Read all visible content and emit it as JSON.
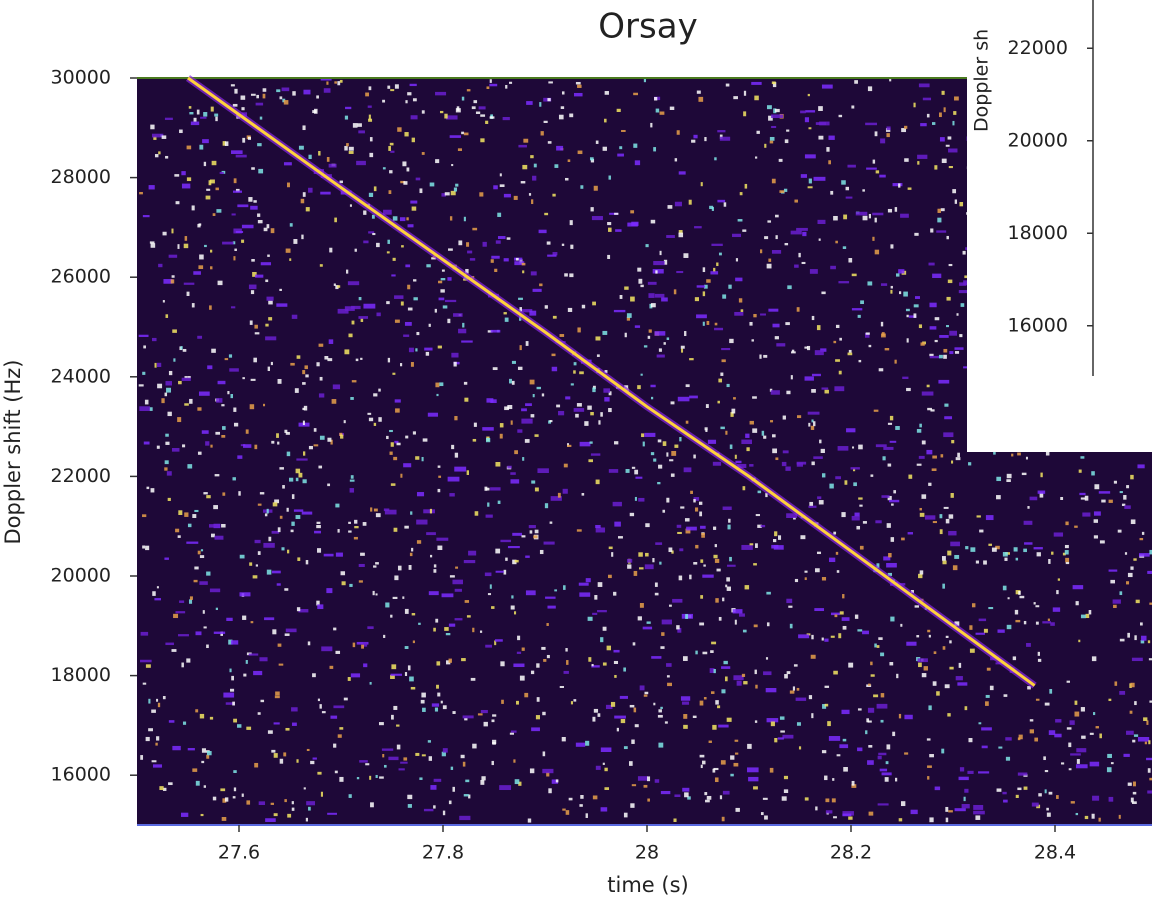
{
  "chart_data": [
    {
      "type": "line",
      "title": "Orsay",
      "xlabel": "time (s)",
      "ylabel": "Doppler shift (Hz)",
      "x": [
        27.55,
        27.7,
        27.9,
        28.0,
        28.1,
        28.2,
        28.3,
        28.38
      ],
      "values": [
        30000,
        27800,
        24900,
        23400,
        22000,
        20500,
        19000,
        17800
      ],
      "color": "#ffd23c",
      "background": "#1e0838",
      "xlim": [
        27.5,
        28.5
      ],
      "xticks": [
        27.6,
        27.8,
        28,
        28.2,
        28.4
      ],
      "ylim": [
        15000,
        30000
      ],
      "yticks": [
        16000,
        18000,
        20000,
        22000,
        24000,
        26000,
        28000,
        30000
      ]
    },
    {
      "type": "axis",
      "ylabel": "Doppler sh",
      "ylim": [
        15000,
        23000
      ],
      "yticks": [
        16000,
        18000,
        20000,
        22000
      ]
    }
  ]
}
